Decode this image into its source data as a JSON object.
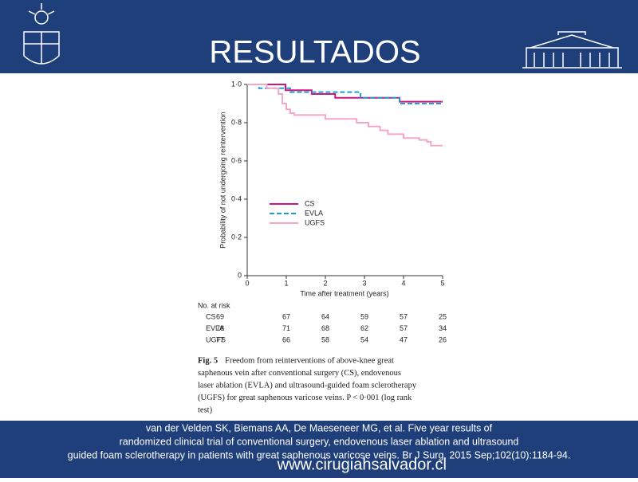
{
  "slide": {
    "title": "RESULTADOS",
    "citation": [
      "van der Velden SK, Biemans AA, De Maeseneer MG, et al. Five year results of",
      "randomized clinical trial of conventional surgery, endovenous laser ablation and ultrasound",
      "guided foam sclerotherapy in patients with great saphenous varicose veins. Br J Surg. 2015 Sep;102(10):1184-94."
    ],
    "watermark": "www.cirugiahsalvador.cl"
  },
  "chart_data": {
    "type": "step-line",
    "xlabel": "Time after treatment (years)",
    "ylabel": "Probability of not undergoing reintervention",
    "xlim": [
      0,
      5
    ],
    "xticks": [
      0,
      1,
      2,
      3,
      4,
      5
    ],
    "ylim": [
      0,
      1
    ],
    "yticks": [
      {
        "value": 0,
        "label": "0"
      },
      {
        "value": 0.2,
        "label": "0·2"
      },
      {
        "value": 0.4,
        "label": "0·4"
      },
      {
        "value": 0.6,
        "label": "0·6"
      },
      {
        "value": 0.8,
        "label": "0·8"
      },
      {
        "value": 1,
        "label": "1·0"
      }
    ],
    "series": [
      {
        "name": "CS",
        "color": "#d0157d",
        "dashed": false,
        "x": [
          0,
          0.98,
          1.65,
          2.25,
          3.9,
          5
        ],
        "values": [
          1,
          0.97,
          0.95,
          0.93,
          0.91,
          0.91
        ]
      },
      {
        "name": "EVLA",
        "color": "#1a9fd0",
        "dashed": true,
        "x": [
          0,
          0.3,
          1.1,
          2.9,
          3.9,
          5
        ],
        "values": [
          1,
          0.98,
          0.96,
          0.93,
          0.9,
          0.9
        ]
      },
      {
        "name": "UGFS",
        "color": "#f2a7c8",
        "dashed": false,
        "x": [
          0,
          0.5,
          0.8,
          0.9,
          1.0,
          1.1,
          1.2,
          1.3,
          2.0,
          2.8,
          3.1,
          3.4,
          3.6,
          4.0,
          4.4,
          4.6,
          4.7,
          5
        ],
        "values": [
          1,
          0.98,
          0.95,
          0.9,
          0.87,
          0.85,
          0.84,
          0.84,
          0.82,
          0.8,
          0.78,
          0.76,
          0.74,
          0.72,
          0.71,
          0.7,
          0.68,
          0.68
        ]
      }
    ]
  },
  "risk_table": {
    "header": "No. at risk",
    "rows": [
      {
        "name": "CS",
        "values": [
          69,
          67,
          64,
          59,
          57,
          25
        ]
      },
      {
        "name": "EVLA",
        "values": [
          78,
          71,
          68,
          62,
          57,
          34
        ]
      },
      {
        "name": "UGFS",
        "values": [
          77,
          66,
          58,
          54,
          47,
          26
        ]
      }
    ]
  },
  "caption": {
    "label": "Fig. 5",
    "lines": [
      "Freedom from reinterventions of above-knee great",
      "saphenous vein after conventional surgery (CS), endovenous",
      "laser ablation (EVLA) and ultrasound-guided foam sclerotherapy",
      "(UGFS) for great saphenous varicose veins. P < 0·001 (log rank",
      "test)"
    ]
  }
}
